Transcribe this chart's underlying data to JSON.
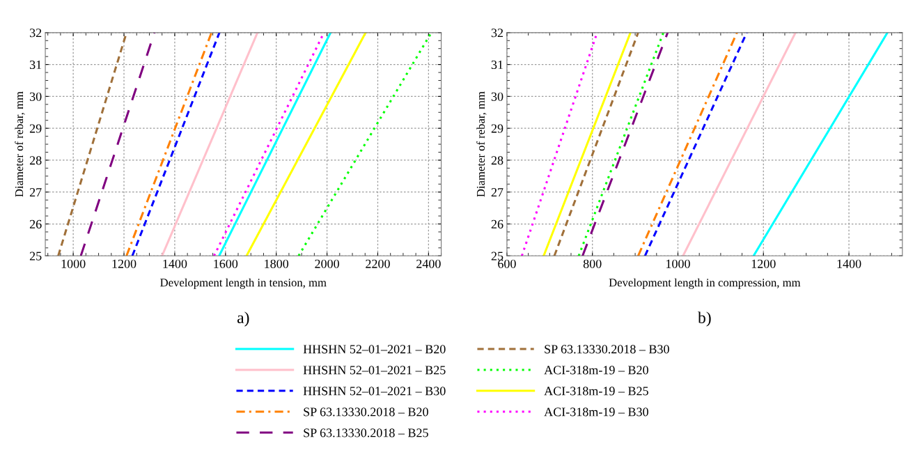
{
  "chart_data": [
    {
      "type": "line",
      "xlabel": "Development length in tension, mm",
      "ylabel": "Diameter of rebar, mm",
      "xlim": [
        890,
        2450
      ],
      "ylim": [
        25,
        32
      ],
      "xticks": [
        1000,
        1200,
        1400,
        1600,
        1800,
        2000,
        2200,
        2400
      ],
      "yticks": [
        25,
        26,
        27,
        28,
        29,
        30,
        31,
        32
      ],
      "grid": true,
      "legend": "bottom",
      "annotations": [
        "a)"
      ],
      "series": [
        {
          "name": "HHSHN 52–01–2021 – B20",
          "color": "#00ffff",
          "line_style": "solid",
          "x": [
            1575,
            2014
          ],
          "values": [
            25,
            32
          ]
        },
        {
          "name": "HHSHN 52–01–2021 – B25",
          "color": "#ffc0cb",
          "line_style": "solid",
          "x": [
            1350,
            1726
          ],
          "values": [
            25,
            32
          ]
        },
        {
          "name": "HHSHN 52–01–2021 – B30",
          "color": "#0000ff",
          "line_style": "dashed",
          "x": [
            1233,
            1576
          ],
          "values": [
            25,
            32
          ]
        },
        {
          "name": "SP 63.13330.2018 – B20",
          "color": "#ff8000",
          "line_style": "dashdot",
          "x": [
            1210,
            1545
          ],
          "values": [
            25,
            32
          ]
        },
        {
          "name": "SP 63.13330.2018 – B25",
          "color": "#800080",
          "line_style": "longdash",
          "x": [
            1030,
            1320
          ],
          "values": [
            25,
            32
          ]
        },
        {
          "name": "SP 63.13330.2018 – B30",
          "color": "#a0703a",
          "line_style": "dashed",
          "x": [
            941,
            1210
          ],
          "values": [
            25,
            32
          ]
        },
        {
          "name": "ACI-318m-19 – B20",
          "color": "#00ff00",
          "line_style": "dotted",
          "x": [
            1888,
            2411
          ],
          "values": [
            25,
            32
          ]
        },
        {
          "name": "ACI-318m-19 – B25",
          "color": "#ffff00",
          "line_style": "solid",
          "x": [
            1683,
            2152
          ],
          "values": [
            25,
            32
          ]
        },
        {
          "name": "ACI-318m-19 – B30",
          "color": "#ff00ff",
          "line_style": "dotted",
          "x": [
            1555,
            1988
          ],
          "values": [
            25,
            32
          ]
        }
      ]
    },
    {
      "type": "line",
      "xlabel": "Development length in compression, mm",
      "ylabel": "Diameter of rebar, mm",
      "xlim": [
        600,
        1525
      ],
      "ylim": [
        25,
        32
      ],
      "xticks": [
        600,
        800,
        1000,
        1200,
        1400
      ],
      "yticks": [
        25,
        26,
        27,
        28,
        29,
        30,
        31,
        32
      ],
      "grid": true,
      "annotations": [
        "b)"
      ],
      "series": [
        {
          "color": "#00ffff",
          "line_style": "solid",
          "x": [
            1177,
            1490
          ],
          "values": [
            25,
            32
          ]
        },
        {
          "color": "#ffc0cb",
          "line_style": "solid",
          "x": [
            1012,
            1275
          ],
          "values": [
            25,
            32
          ]
        },
        {
          "color": "#0000ff",
          "line_style": "dashed",
          "x": [
            923,
            1161
          ],
          "values": [
            25,
            32
          ]
        },
        {
          "color": "#ff8000",
          "line_style": "dashdot",
          "x": [
            907,
            1138
          ],
          "values": [
            25,
            32
          ]
        },
        {
          "color": "#800080",
          "line_style": "longdash",
          "x": [
            777,
            976
          ],
          "values": [
            25,
            32
          ]
        },
        {
          "color": "#a0703a",
          "line_style": "dashed",
          "x": [
            711,
            907
          ],
          "values": [
            25,
            32
          ]
        },
        {
          "color": "#00ff00",
          "line_style": "dotted",
          "x": [
            768,
            966
          ],
          "values": [
            25,
            32
          ]
        },
        {
          "color": "#ffff00",
          "line_style": "solid",
          "x": [
            686,
            889
          ],
          "values": [
            25,
            32
          ]
        },
        {
          "color": "#ff00ff",
          "line_style": "dotted",
          "x": [
            635,
            811
          ],
          "values": [
            25,
            32
          ]
        }
      ]
    }
  ]
}
